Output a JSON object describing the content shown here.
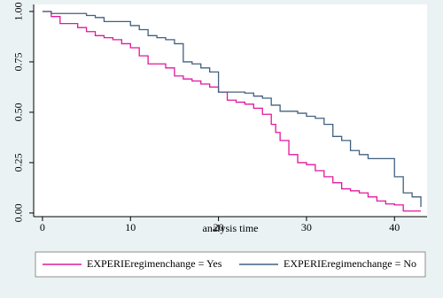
{
  "chart_data": {
    "type": "line",
    "step": true,
    "xlabel": "analysis time",
    "xlim": [
      -1,
      43.7
    ],
    "ylim": [
      -0.018,
      1.035
    ],
    "xticks": [
      0,
      10,
      20,
      30,
      40
    ],
    "yticks": [
      {
        "value": 0,
        "label": "0.00"
      },
      {
        "value": 0.25,
        "label": "0.25"
      },
      {
        "value": 0.5,
        "label": "0.50"
      },
      {
        "value": 0.75,
        "label": "0.75"
      },
      {
        "value": 1,
        "label": "1.00"
      }
    ],
    "grid": false,
    "legend_position": "bottom",
    "series": [
      {
        "name": "EXPERIEregimenchange = Yes",
        "color": "#e0189c",
        "x": [
          0,
          1,
          2,
          4,
          5,
          6,
          7,
          8,
          9,
          10,
          11,
          12,
          14,
          15,
          16,
          17,
          18,
          19,
          20,
          21,
          22,
          23,
          24,
          25,
          26,
          26.5,
          27,
          28,
          29,
          30,
          31,
          32,
          33,
          34,
          35,
          36,
          37,
          38,
          39,
          40,
          41,
          43
        ],
        "values": [
          1.0,
          0.975,
          0.94,
          0.92,
          0.9,
          0.88,
          0.87,
          0.86,
          0.84,
          0.82,
          0.78,
          0.74,
          0.72,
          0.68,
          0.665,
          0.655,
          0.64,
          0.625,
          0.6,
          0.56,
          0.55,
          0.54,
          0.52,
          0.49,
          0.44,
          0.4,
          0.36,
          0.29,
          0.25,
          0.24,
          0.21,
          0.18,
          0.15,
          0.12,
          0.11,
          0.1,
          0.08,
          0.06,
          0.045,
          0.04,
          0.01,
          0.01
        ]
      },
      {
        "name": "EXPERIEregimenchange = No",
        "color": "#41607f",
        "x": [
          0,
          1,
          5,
          6,
          7,
          10,
          11,
          12,
          13,
          14,
          15,
          16,
          17,
          18,
          19,
          20,
          23,
          24,
          25,
          26,
          27,
          29,
          30,
          31,
          32,
          33,
          34,
          35,
          36,
          37,
          40,
          41,
          42,
          43
        ],
        "values": [
          1.0,
          0.99,
          0.98,
          0.97,
          0.95,
          0.93,
          0.91,
          0.88,
          0.87,
          0.86,
          0.84,
          0.75,
          0.74,
          0.72,
          0.7,
          0.6,
          0.595,
          0.58,
          0.57,
          0.535,
          0.505,
          0.495,
          0.48,
          0.47,
          0.44,
          0.38,
          0.36,
          0.31,
          0.29,
          0.27,
          0.18,
          0.1,
          0.08,
          0.03
        ]
      }
    ]
  }
}
